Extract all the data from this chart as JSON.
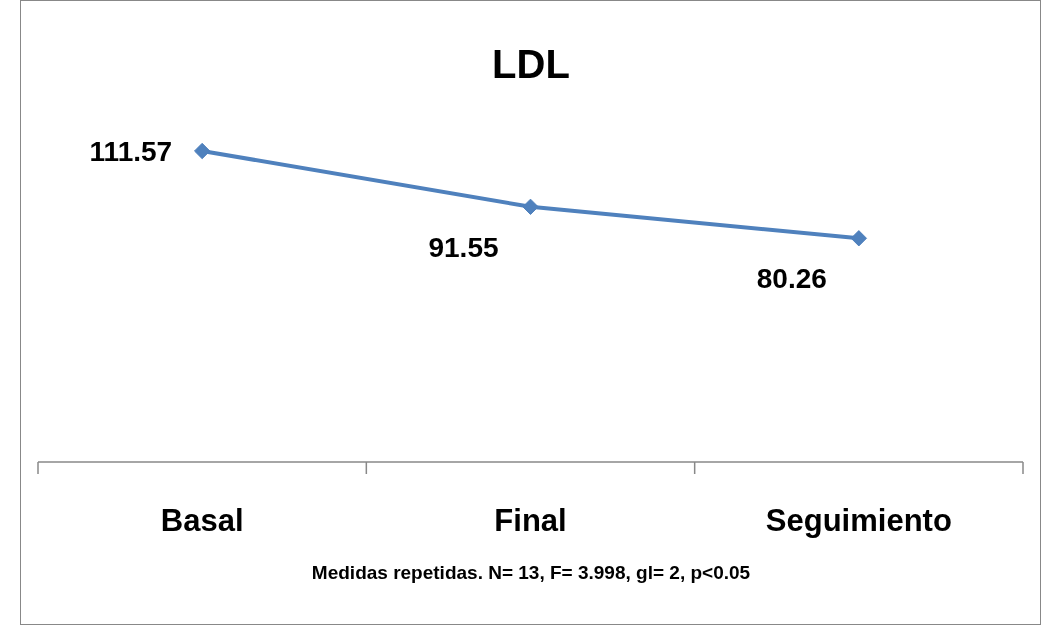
{
  "chart_data": {
    "type": "line",
    "title": "LDL",
    "categories": [
      "Basal",
      "Final",
      "Seguimiento"
    ],
    "series": [
      {
        "color": "#4f81bd",
        "values": [
          111.57,
          91.55,
          80.26
        ]
      }
    ],
    "data_labels": true,
    "marker": "diamond",
    "annotations": [
      "Medidas repetidas. N= 13, F= 3.998, gl= 2, p<0.05"
    ]
  }
}
